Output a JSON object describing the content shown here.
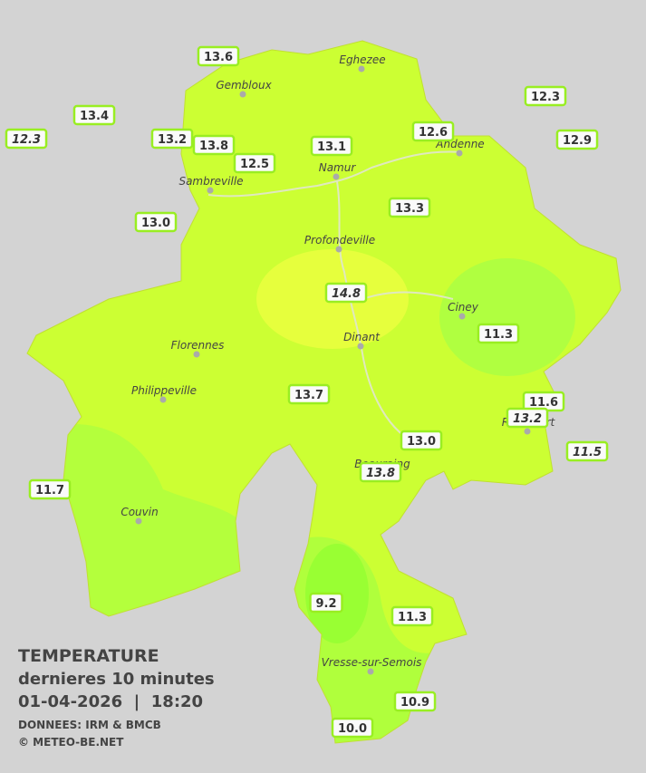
{
  "cities": [
    {
      "name": "Eghezee"
    },
    {
      "name": "Gembloux"
    },
    {
      "name": "Andenne"
    },
    {
      "name": "Namur"
    },
    {
      "name": "Sambreville"
    },
    {
      "name": "Profondeville"
    },
    {
      "name": "Ciney"
    },
    {
      "name": "Dinant"
    },
    {
      "name": "Florennes"
    },
    {
      "name": "Philippeville"
    },
    {
      "name": "Rochefort"
    },
    {
      "name": "Beauraing"
    },
    {
      "name": "Couvin"
    },
    {
      "name": "Vresse-sur-Semois"
    }
  ],
  "stations": [
    {
      "label": "13.6"
    },
    {
      "label": "13.4"
    },
    {
      "label": "12.3"
    },
    {
      "label": "13.2"
    },
    {
      "label": "13.8"
    },
    {
      "label": "12.5"
    },
    {
      "label": "13.1"
    },
    {
      "label": "12.6"
    },
    {
      "label": "12.3"
    },
    {
      "label": "12.9"
    },
    {
      "label": "13.0"
    },
    {
      "label": "13.3"
    },
    {
      "label": "14.8"
    },
    {
      "label": "11.3"
    },
    {
      "label": "13.7"
    },
    {
      "label": "11.6"
    },
    {
      "label": "13.2"
    },
    {
      "label": "11.5"
    },
    {
      "label": "13.0"
    },
    {
      "label": "13.8"
    },
    {
      "label": "11.7"
    },
    {
      "label": "9.2"
    },
    {
      "label": "11.3"
    },
    {
      "label": "10.9"
    },
    {
      "label": "10.0"
    }
  ],
  "footer": {
    "title": "TEMPERATURE",
    "subtitle": "dernieres 10 minutes",
    "datetime": "01-04-2026  |  18:20",
    "source": "DONNEES: IRM & BMCB",
    "copyright": "© METEO-BE.NET"
  }
}
